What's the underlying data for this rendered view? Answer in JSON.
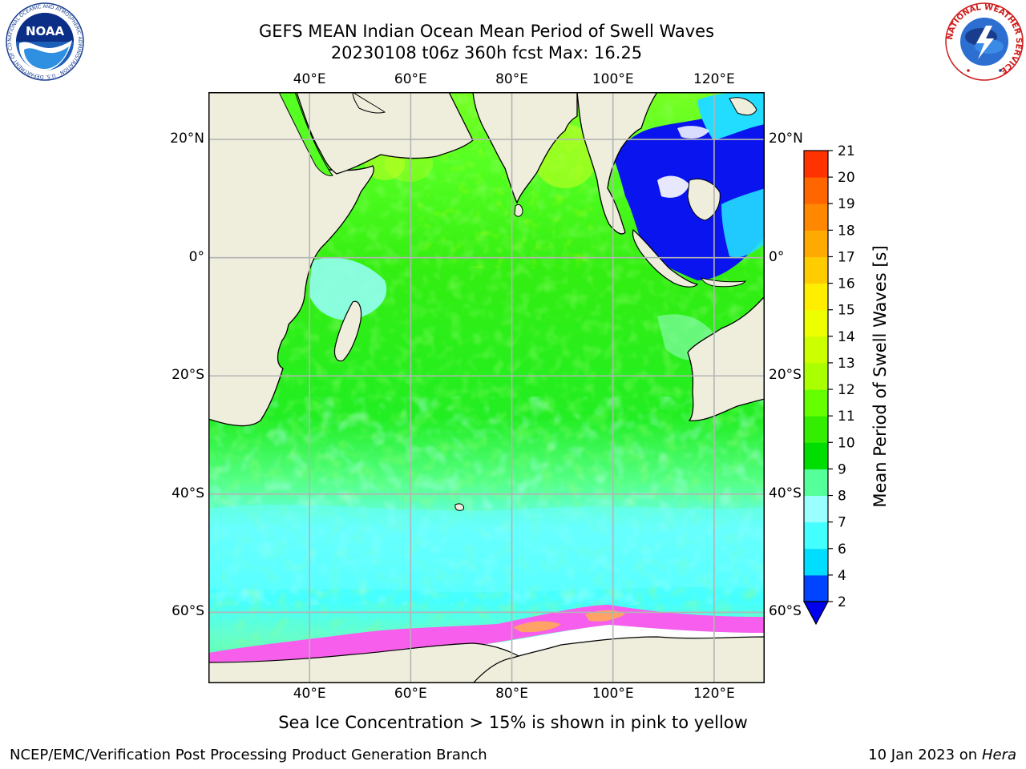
{
  "title": {
    "line1": "GEFS MEAN Indian Ocean Mean Period of Swell Waves",
    "line2": "20230108 t06z 360h fcst   Max: 16.25"
  },
  "logos": {
    "noaa_text": "NOAA",
    "noaa_ring_text": "NATIONAL OCEANIC AND ATMOSPHERIC ADMINISTRATION · U.S. DEPARTMENT OF COMMERCE",
    "nws_ring_text": "NATIONAL WEATHER SERVICE"
  },
  "map": {
    "projection": "cylindrical",
    "lon_range": [
      20,
      130
    ],
    "lat_range": [
      -72,
      28
    ],
    "lon_ticks": [
      {
        "value": 40,
        "label": "40°E"
      },
      {
        "value": 60,
        "label": "60°E"
      },
      {
        "value": 80,
        "label": "80°E"
      },
      {
        "value": 100,
        "label": "100°E"
      },
      {
        "value": 120,
        "label": "120°E"
      }
    ],
    "lat_ticks": [
      {
        "value": 20,
        "label": "20°N"
      },
      {
        "value": 0,
        "label": "0°"
      },
      {
        "value": -20,
        "label": "20°S"
      },
      {
        "value": -40,
        "label": "40°S"
      },
      {
        "value": -60,
        "label": "60°S"
      }
    ],
    "grid": true,
    "colors": {
      "land": "#efeedd",
      "grid": "#b4b4b4",
      "sea_ice_pink": "#ff55ee",
      "sea_ice_orange": "#ffaa55"
    }
  },
  "colorbar": {
    "label": "Mean Period of Swell Waves [s]",
    "ticks": [
      2,
      4,
      6,
      7,
      8,
      9,
      10,
      11,
      12,
      13,
      14,
      15,
      16,
      17,
      18,
      19,
      20,
      21
    ],
    "colors": [
      "#0044ff",
      "#00ddff",
      "#44ffff",
      "#99ffff",
      "#55ff99",
      "#00dd00",
      "#33ee00",
      "#66ff00",
      "#aaff00",
      "#ccff00",
      "#eeff00",
      "#ffee00",
      "#ffcc00",
      "#ffaa00",
      "#ff8800",
      "#ff6600",
      "#ff3300"
    ],
    "underflow_color": "#0000ee",
    "extend": "min"
  },
  "notes": {
    "sea_ice": "Sea Ice Concentration > 15% is shown in pink to yellow"
  },
  "footer": {
    "left": "NCEP/EMC/Verification Post Processing Product Generation Branch",
    "right_date": "10 Jan 2023 on ",
    "right_machine": "Hera"
  }
}
